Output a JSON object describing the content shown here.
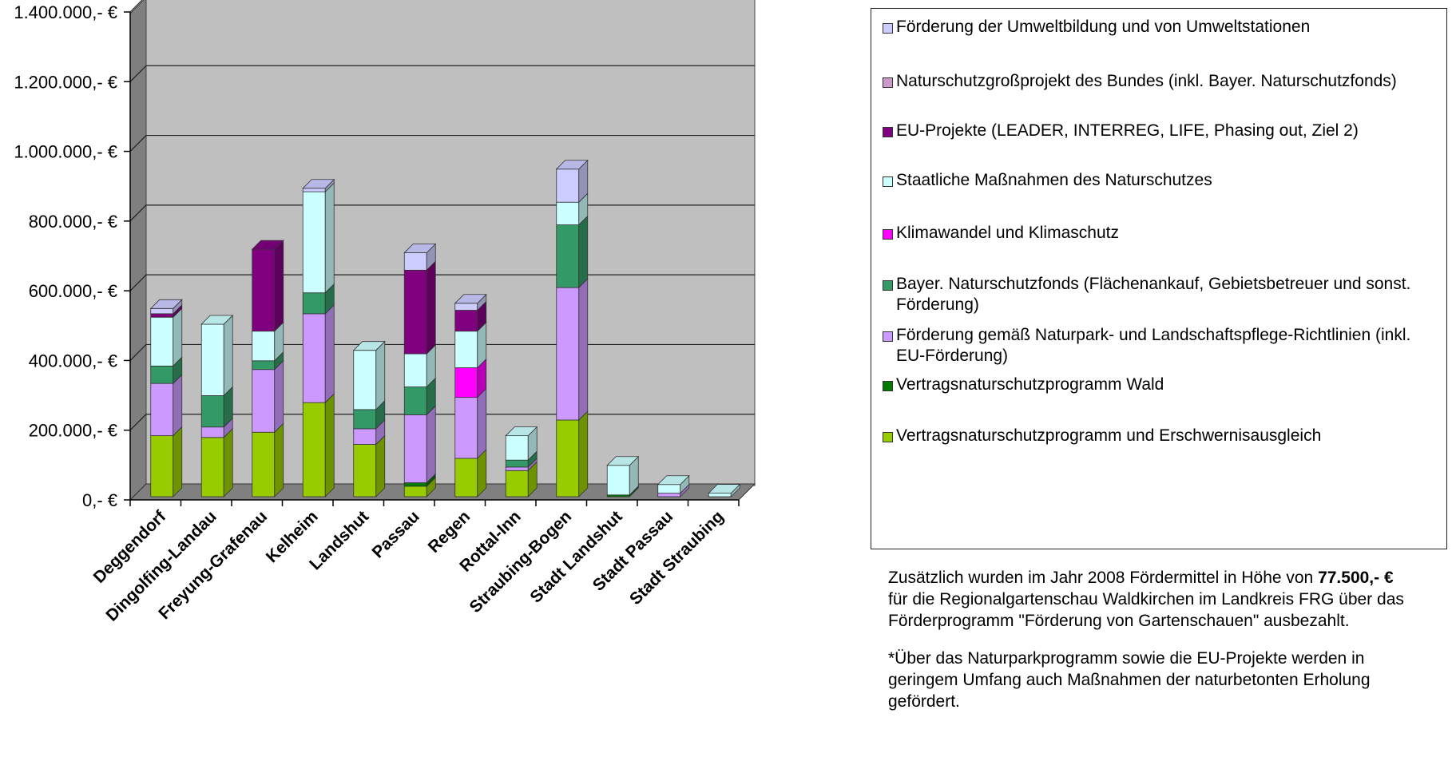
{
  "chart_data": {
    "type": "bar",
    "stacked": true,
    "three_d": true,
    "categories": [
      "Deggendorf",
      "Dingolfing-Landau",
      "Freyung-Grafenau",
      "Kelheim",
      "Landshut",
      "Passau",
      "Regen",
      "Rottal-Inn",
      "Straubing-Bogen",
      "Stadt Landshut",
      "Stadt Passau",
      "Stadt Straubing"
    ],
    "y_ticks": [
      "0,- €",
      "200.000,- €",
      "400.000,- €",
      "600.000,- €",
      "800.000,- €",
      "1.000.000,- €",
      "1.200.000,- €",
      "1.400.000,- €"
    ],
    "ylim": [
      0,
      1400000
    ],
    "grid": true,
    "legend_position": "right",
    "series": [
      {
        "name": "Vertragsnaturschutzprogramm und Erschwernisausgleich",
        "color": "#99cc00",
        "values": [
          175000,
          170000,
          185000,
          270000,
          150000,
          30000,
          110000,
          75000,
          220000,
          0,
          0,
          0
        ]
      },
      {
        "name": "Vertragsnaturschutzprogramm Wald",
        "color": "#007a00",
        "values": [
          0,
          0,
          0,
          0,
          0,
          10000,
          0,
          0,
          0,
          5000,
          0,
          0
        ]
      },
      {
        "name": "Förderung gemäß Naturpark- und Landschaftspflege-Richtlinien (inkl. EU-Förderung)",
        "color": "#cc99ff",
        "values": [
          150000,
          30000,
          180000,
          255000,
          45000,
          195000,
          175000,
          10000,
          380000,
          0,
          10000,
          0
        ]
      },
      {
        "name": "Bayer. Naturschutzfonds (Flächenankauf, Gebietsbetreuer und sonst. Förderung)",
        "color": "#339966",
        "values": [
          50000,
          90000,
          25000,
          60000,
          55000,
          80000,
          0,
          20000,
          180000,
          0,
          0,
          0
        ]
      },
      {
        "name": "Klimawandel und Klimaschutz",
        "color": "#ff00ff",
        "values": [
          0,
          0,
          0,
          0,
          0,
          0,
          85000,
          0,
          0,
          0,
          0,
          0
        ]
      },
      {
        "name": "Staatliche Maßnahmen des Naturschutzes",
        "color": "#ccffff",
        "values": [
          140000,
          205000,
          85000,
          290000,
          170000,
          95000,
          105000,
          70000,
          65000,
          85000,
          25000,
          10000
        ]
      },
      {
        "name": "EU-Projekte (LEADER, INTERREG, LIFE, Phasing out, Ziel 2)",
        "color": "#800080",
        "values": [
          10000,
          0,
          235000,
          0,
          0,
          240000,
          60000,
          0,
          0,
          0,
          0,
          0
        ]
      },
      {
        "name": "Naturschutzgroßprojekt des Bundes (inkl. Bayer. Naturschutzfonds)",
        "color": "#cc99cc",
        "values": [
          0,
          0,
          0,
          0,
          0,
          0,
          0,
          0,
          0,
          0,
          0,
          0
        ]
      },
      {
        "name": "Förderung der Umweltbildung und von Umweltstationen",
        "color": "#ccccff",
        "values": [
          15000,
          0,
          0,
          10000,
          0,
          50000,
          20000,
          0,
          95000,
          0,
          0,
          0
        ]
      }
    ]
  },
  "legend": {
    "items": [
      "Förderung der Umweltbildung und von Umweltstationen",
      "Naturschutzgroßprojekt des Bundes (inkl. Bayer. Naturschutzfonds)",
      "EU-Projekte (LEADER, INTERREG, LIFE, Phasing out, Ziel 2)",
      "Staatliche Maßnahmen des Naturschutzes",
      "Klimawandel und Klimaschutz",
      "Bayer. Naturschutzfonds (Flächenankauf, Gebietsbetreuer und sonst. Förderung)",
      "Förderung gemäß Naturpark- und Landschaftspflege-Richtlinien (inkl. EU-Förderung)",
      "Vertragsnaturschutzprogramm Wald",
      "Vertragsnaturschutzprogramm und Erschwernisausgleich"
    ],
    "colors": [
      "#ccccff",
      "#cc99cc",
      "#800080",
      "#ccffff",
      "#ff00ff",
      "#339966",
      "#cc99ff",
      "#007a00",
      "#99cc00"
    ]
  },
  "note": {
    "p1_before": "Zusätzlich wurden im Jahr 2008 Fördermittel in Höhe von ",
    "p1_amount": "77.500,- €",
    "p1_after": " für die Regionalgartenschau Waldkirchen im Landkreis FRG über das Förderprogramm \"Förderung von Gartenschauen\" ausbezahlt.",
    "p2": "*Über das Naturparkprogramm sowie die EU-Projekte werden in geringem Umfang auch Maßnahmen der naturbetonten Erholung gefördert."
  }
}
